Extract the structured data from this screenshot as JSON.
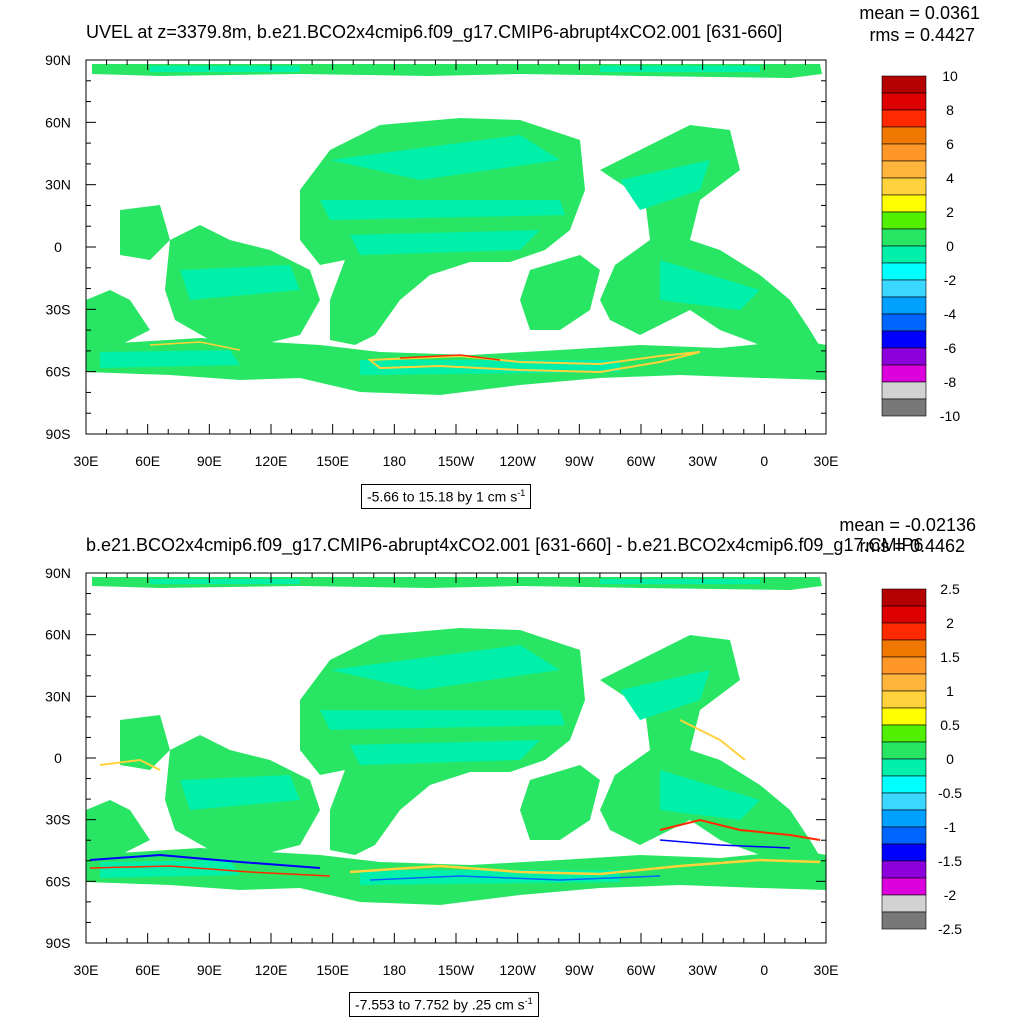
{
  "chart_data": [
    {
      "type": "heatmap",
      "title": "UVEL at z=3379.8m, b.e21.BCO2x4cmip6.f09_g17.CMIP6-abrupt4xCO2.001 [631-660]",
      "mean_label": "mean = 0.0361",
      "rms_label": "rms = 0.4427",
      "range_label": "-5.66 to 15.18 by 1 cm s",
      "range_sup": "-1",
      "x_ticks": [
        "30E",
        "60E",
        "90E",
        "120E",
        "150E",
        "180",
        "150W",
        "120W",
        "90W",
        "60W",
        "30W",
        "0",
        "30E"
      ],
      "y_ticks": [
        "90N",
        "60N",
        "30N",
        "0",
        "30S",
        "60S",
        "90S"
      ],
      "colorbar_labels": [
        "10",
        "8",
        "6",
        "4",
        "2",
        "0",
        "-2",
        "-4",
        "-6",
        "-8",
        "-10"
      ],
      "colorbar_colors": [
        "#b40000",
        "#dc0000",
        "#ff2a00",
        "#f07800",
        "#ff9628",
        "#ffb43c",
        "#ffd23c",
        "#ffff00",
        "#50f000",
        "#28e664",
        "#00f0aa",
        "#00ffff",
        "#3cd7ff",
        "#00a0ff",
        "#0064ff",
        "#0000ff",
        "#8c00dc",
        "#dc00dc",
        "#d2d2d2",
        "#787878"
      ],
      "zlim": [
        -10,
        10
      ]
    },
    {
      "type": "heatmap",
      "title": "b.e21.BCO2x4cmip6.f09_g17.CMIP6-abrupt4xCO2.001 [631-660] - b.e21.BCO2x4cmip6.f09_g17.CMIP6",
      "mean_label": "mean = -0.02136",
      "rms_label": "rms = 0.4462",
      "range_label": "-7.553 to 7.752 by .25 cm s",
      "range_sup": "-1",
      "x_ticks": [
        "30E",
        "60E",
        "90E",
        "120E",
        "150E",
        "180",
        "150W",
        "120W",
        "90W",
        "60W",
        "30W",
        "0",
        "30E"
      ],
      "y_ticks": [
        "90N",
        "60N",
        "30N",
        "0",
        "30S",
        "60S",
        "90S"
      ],
      "colorbar_labels": [
        "2.5",
        "2",
        "1.5",
        "1",
        "0.5",
        "0",
        "-0.5",
        "-1",
        "-1.5",
        "-2",
        "-2.5"
      ],
      "colorbar_colors": [
        "#b40000",
        "#dc0000",
        "#ff2a00",
        "#f07800",
        "#ff9628",
        "#ffb43c",
        "#ffd23c",
        "#ffff00",
        "#50f000",
        "#28e664",
        "#00f0aa",
        "#00ffff",
        "#3cd7ff",
        "#00a0ff",
        "#0064ff",
        "#0000ff",
        "#8c00dc",
        "#dc00dc",
        "#d2d2d2",
        "#787878"
      ],
      "zlim": [
        -2.5,
        2.5
      ]
    }
  ]
}
